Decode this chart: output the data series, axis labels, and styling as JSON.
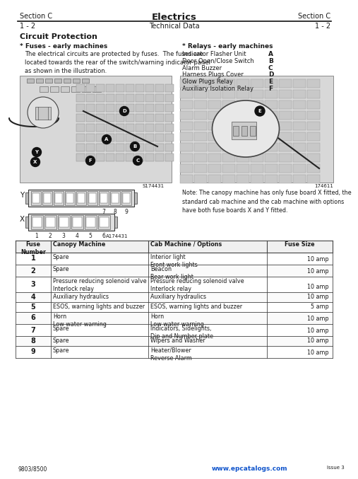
{
  "header_left": "Section C",
  "header_center": "Electrics",
  "header_right": "Section C",
  "subheader_left": "1 - 2",
  "subheader_center": "Technical Data",
  "subheader_right": "1 - 2",
  "section_title": "Circuit Protection",
  "fuses_heading": "* Fuses - early machines",
  "relays_heading": "* Relays - early machines",
  "fuses_text": "The electrical circuits are protected by fuses.  The fuses are\nlocated towards the rear of the switch/warning indicator panel\nas shown in the illustration.",
  "relays_list": [
    [
      "Indicator Flasher Unit",
      "A"
    ],
    [
      "Door Open/Close Switch",
      "B"
    ],
    [
      "Alarm Buzzer",
      "C"
    ],
    [
      "Harness Plugs Cover",
      "D"
    ],
    [
      "Glow Plugs Relay",
      "E"
    ],
    [
      "Auxiliary Isolation Relay",
      "F"
    ]
  ],
  "img_ref_left": "S174431",
  "img_ref_right": "174611",
  "img_ref_bottom_left": "A174431",
  "note_text": "Note: The canopy machine has only fuse board X fitted, the\nstandard cab machine and the cab machine with options\nhave both fuse boards X and Y fitted.",
  "table_headers": [
    "Fuse\nNumber",
    "Canopy Machine",
    "Cab Machine / Options",
    "Fuse Size"
  ],
  "table_rows": [
    [
      "1",
      "Spare",
      "Interior light\nFront work lights",
      "10 amp"
    ],
    [
      "2",
      "Spare",
      "Beacon\nRear work light",
      "10 amp"
    ],
    [
      "3",
      "Pressure reducing solenoid valve\nInterlock relay",
      "Pressure reducing solenoid valve\nInterlock relay",
      "10 amp"
    ],
    [
      "4",
      "Auxiliary hydraulics",
      "Auxiliary hydraulics",
      "10 amp"
    ],
    [
      "5",
      "ESOS, warning lights and buzzer",
      "ESOS, warning lights and buzzer",
      "5 amp"
    ],
    [
      "6",
      "Horn\nLow water warning",
      "Horn\nLow water warning",
      "10 amp"
    ],
    [
      "7",
      "Spare",
      "Indicators, Sidelights,\nDip and Number plate",
      "10 amp"
    ],
    [
      "8",
      "Spare",
      "Wipers and Washer",
      "10 amp"
    ],
    [
      "9",
      "Spare",
      "Heater/Blower\nReverse Alarm",
      "10 amp"
    ]
  ],
  "footer_left": "9803/8500",
  "footer_right": "www.epcatalogs.com",
  "footer_right2": "Issue 3",
  "bg_color": "#ffffff",
  "text_color": "#1a1a1a",
  "gray_text": "#555555",
  "header_line_color": "#111111",
  "table_line_color": "#444444"
}
